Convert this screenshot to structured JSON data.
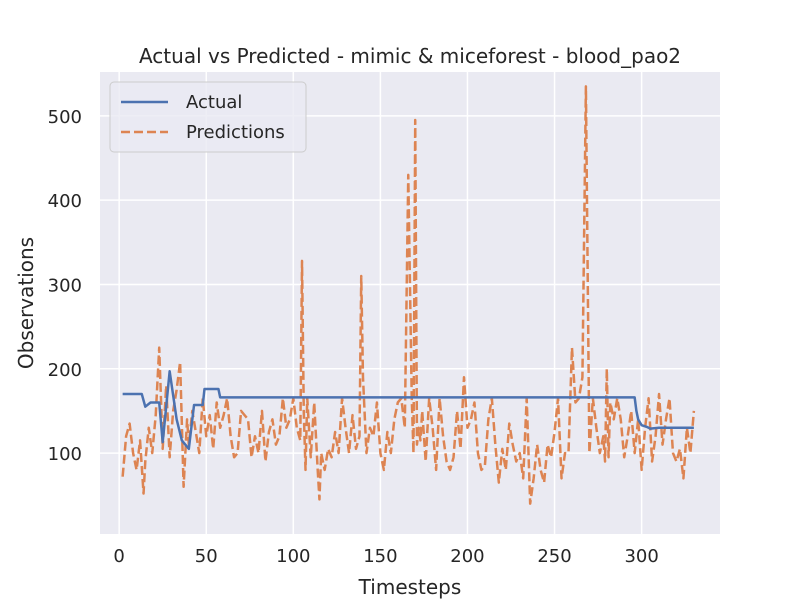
{
  "chart_data": {
    "type": "line",
    "title": "Actual vs Predicted - mimic & miceforest - blood_pao2",
    "xlabel": "Timesteps",
    "ylabel": "Observations",
    "xlim": [
      -11,
      345
    ],
    "ylim": [
      4,
      552
    ],
    "xticks": [
      0,
      50,
      100,
      150,
      200,
      250,
      300
    ],
    "yticks": [
      100,
      200,
      300,
      400,
      500
    ],
    "grid": true,
    "legend_position": "top-left",
    "colors": {
      "actual": "#4c72b0",
      "predictions": "#dd8452",
      "background": "#eaeaf2",
      "grid": "#ffffff"
    },
    "series": [
      {
        "name": "Actual",
        "style": "solid",
        "x": [
          2,
          13,
          15,
          18,
          23,
          25,
          29,
          33,
          36,
          40,
          43,
          48,
          49,
          57,
          58,
          296,
          297,
          298,
          300,
          303,
          305,
          310,
          330
        ],
        "y": [
          170,
          170,
          155,
          160,
          160,
          113,
          197,
          140,
          115,
          105,
          157,
          157,
          176,
          176,
          166,
          166,
          150,
          140,
          133,
          131,
          129,
          130,
          130
        ]
      },
      {
        "name": "Predictions",
        "style": "dashed",
        "x": [
          2,
          4,
          6,
          8,
          10,
          12,
          14,
          15,
          17,
          19,
          21,
          23,
          25,
          27,
          29,
          31,
          33,
          35,
          37,
          39,
          40,
          42,
          44,
          46,
          48,
          50,
          52,
          54,
          56,
          58,
          60,
          62,
          64,
          66,
          68,
          70,
          72,
          74,
          76,
          78,
          80,
          82,
          84,
          86,
          88,
          90,
          92,
          94,
          96,
          98,
          100,
          102,
          104,
          105,
          106,
          107,
          108,
          110,
          112,
          114,
          115,
          116,
          118,
          120,
          122,
          124,
          126,
          128,
          130,
          132,
          134,
          136,
          138,
          139,
          140,
          141,
          142,
          144,
          146,
          148,
          150,
          152,
          154,
          156,
          158,
          160,
          162,
          164,
          166,
          168,
          169,
          170,
          171,
          172,
          173,
          174,
          176,
          178,
          180,
          182,
          184,
          186,
          188,
          190,
          192,
          194,
          196,
          198,
          200,
          202,
          204,
          206,
          208,
          210,
          212,
          214,
          216,
          218,
          220,
          222,
          224,
          226,
          228,
          230,
          232,
          234,
          236,
          238,
          240,
          242,
          244,
          246,
          248,
          250,
          252,
          254,
          256,
          258,
          260,
          262,
          264,
          266,
          268,
          270,
          272,
          274,
          276,
          278,
          279,
          280,
          281,
          282,
          284,
          286,
          288,
          290,
          292,
          294,
          296,
          298,
          300,
          301,
          302,
          304,
          306,
          308,
          310,
          312,
          314,
          316,
          318,
          320,
          322,
          324,
          326,
          328,
          330
        ],
        "y": [
          72,
          120,
          135,
          100,
          80,
          115,
          52,
          90,
          130,
          100,
          145,
          225,
          105,
          180,
          95,
          150,
          175,
          208,
          60,
          140,
          110,
          150,
          125,
          100,
          165,
          120,
          145,
          105,
          160,
          130,
          145,
          165,
          120,
          95,
          100,
          150,
          145,
          140,
          95,
          120,
          100,
          150,
          90,
          125,
          140,
          110,
          120,
          165,
          130,
          140,
          165,
          130,
          115,
          328,
          150,
          80,
          165,
          95,
          160,
          80,
          45,
          100,
          80,
          105,
          95,
          125,
          100,
          165,
          130,
          100,
          145,
          105,
          120,
          310,
          190,
          145,
          100,
          130,
          120,
          160,
          100,
          80,
          125,
          100,
          140,
          160,
          165,
          130,
          430,
          165,
          100,
          495,
          110,
          130,
          115,
          150,
          90,
          165,
          130,
          80,
          165,
          120,
          90,
          80,
          95,
          150,
          105,
          190,
          130,
          140,
          160,
          100,
          80,
          85,
          140,
          165,
          110,
          65,
          105,
          80,
          135,
          110,
          90,
          100,
          70,
          165,
          40,
          70,
          110,
          80,
          65,
          110,
          95,
          125,
          165,
          70,
          100,
          100,
          225,
          160,
          165,
          190,
          535,
          100,
          165,
          130,
          100,
          120,
          90,
          200,
          95,
          160,
          140,
          165,
          140,
          95,
          120,
          150,
          100,
          140,
          80,
          105,
          130,
          165,
          90,
          120,
          170,
          110,
          140,
          165,
          100,
          90,
          105,
          70,
          130,
          100,
          150
        ]
      }
    ]
  }
}
